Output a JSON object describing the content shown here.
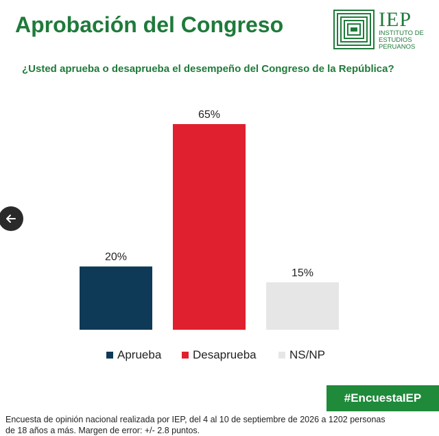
{
  "header": {
    "title": "Aprobación del Congreso",
    "question": "¿Usted aprueba o desaprueba el desempeño del Congreso de la República?"
  },
  "logo": {
    "acronym": "IEP",
    "line1": "INSTITUTO DE",
    "line2": "ESTUDIOS",
    "line3": "PERUANOS",
    "color": "#1f7a3a"
  },
  "chart_data": {
    "type": "bar",
    "categories": [
      "Aprueba",
      "Desaprueba",
      "NS/NP"
    ],
    "values": [
      20,
      65,
      15
    ],
    "data_labels": [
      "20%",
      "65%",
      "15%"
    ],
    "colors": [
      "#0f3a57",
      "#e0202e",
      "#e6e6e6"
    ],
    "title": "",
    "xlabel": "",
    "ylabel": "",
    "ylim": [
      0,
      65
    ],
    "grid": false,
    "legend": "bottom"
  },
  "hashtag": "#EncuestaIEP",
  "footer": {
    "line1": "Encuesta de opinión nacional realizada por IEP, del 4 al 10 de septiembre de 2026 a 1202 personas",
    "line2": "de 18 años a más. Margen de error: +/- 2.8 puntos."
  },
  "nav": {
    "icon": "arrow-left-icon"
  }
}
